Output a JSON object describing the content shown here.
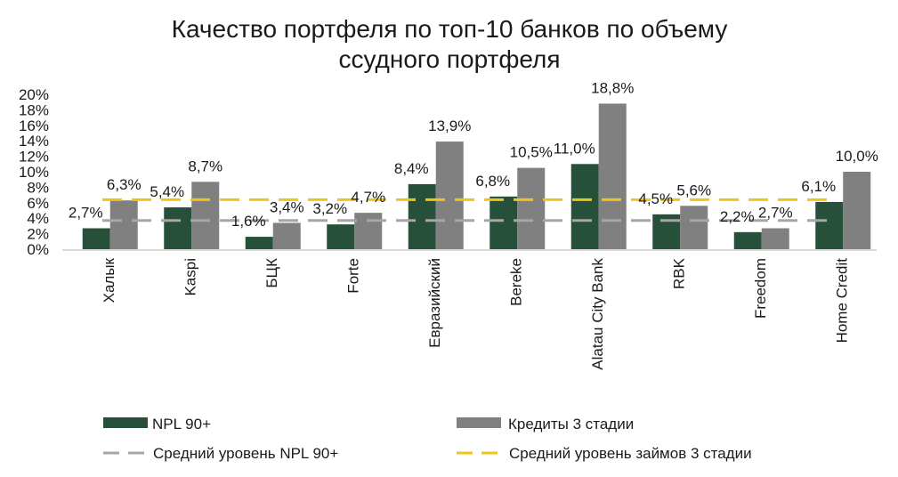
{
  "chart_data": {
    "type": "bar",
    "title": "Качество портфеля по топ-10 банков по объему ссудного портфеля",
    "title_lines": [
      "Качество портфеля по топ-10 банков по объему",
      "ссудного портфеля"
    ],
    "xlabel": "",
    "ylabel": "",
    "ylim": [
      0,
      20
    ],
    "yticks": [
      0,
      2,
      4,
      6,
      8,
      10,
      12,
      14,
      16,
      18,
      20
    ],
    "ytick_labels": [
      "0%",
      "2%",
      "4%",
      "6%",
      "8%",
      "10%",
      "12%",
      "14%",
      "16%",
      "18%",
      "20%"
    ],
    "grid": false,
    "legend_position": "bottom",
    "categories": [
      "Халык",
      "Kaspi",
      "БЦК",
      "Forte",
      "Евразийский",
      "Bereke",
      "Alatau City Bank",
      "RBK",
      "Freedom",
      "Home Credit"
    ],
    "series": [
      {
        "name": "NPL 90+",
        "kind": "bar",
        "color": "#27503a",
        "values": [
          2.7,
          5.4,
          1.6,
          3.2,
          8.4,
          6.8,
          11.0,
          4.5,
          2.2,
          6.1
        ],
        "labels": [
          "2,7%",
          "5,4%",
          "1,6%",
          "3,2%",
          "8,4%",
          "6,8%",
          "11,0%",
          "4,5%",
          "2,2%",
          "6,1%"
        ]
      },
      {
        "name": "Кредиты 3 стадии",
        "kind": "bar",
        "color": "#808080",
        "values": [
          6.3,
          8.7,
          3.4,
          4.7,
          13.9,
          10.5,
          18.8,
          5.6,
          2.7,
          10.0
        ],
        "labels": [
          "6,3%",
          "8,7%",
          "3,4%",
          "4,7%",
          "13,9%",
          "10,5%",
          "18,8%",
          "5,6%",
          "2,7%",
          "10,0%"
        ]
      },
      {
        "name": "Средний уровень NPL 90+",
        "kind": "dashed-line",
        "color": "#a6a6a6",
        "value": 3.7
      },
      {
        "name": "Средний уровень займов 3 стадии",
        "kind": "dashed-line",
        "color": "#f0c419",
        "value": 6.4
      }
    ]
  }
}
